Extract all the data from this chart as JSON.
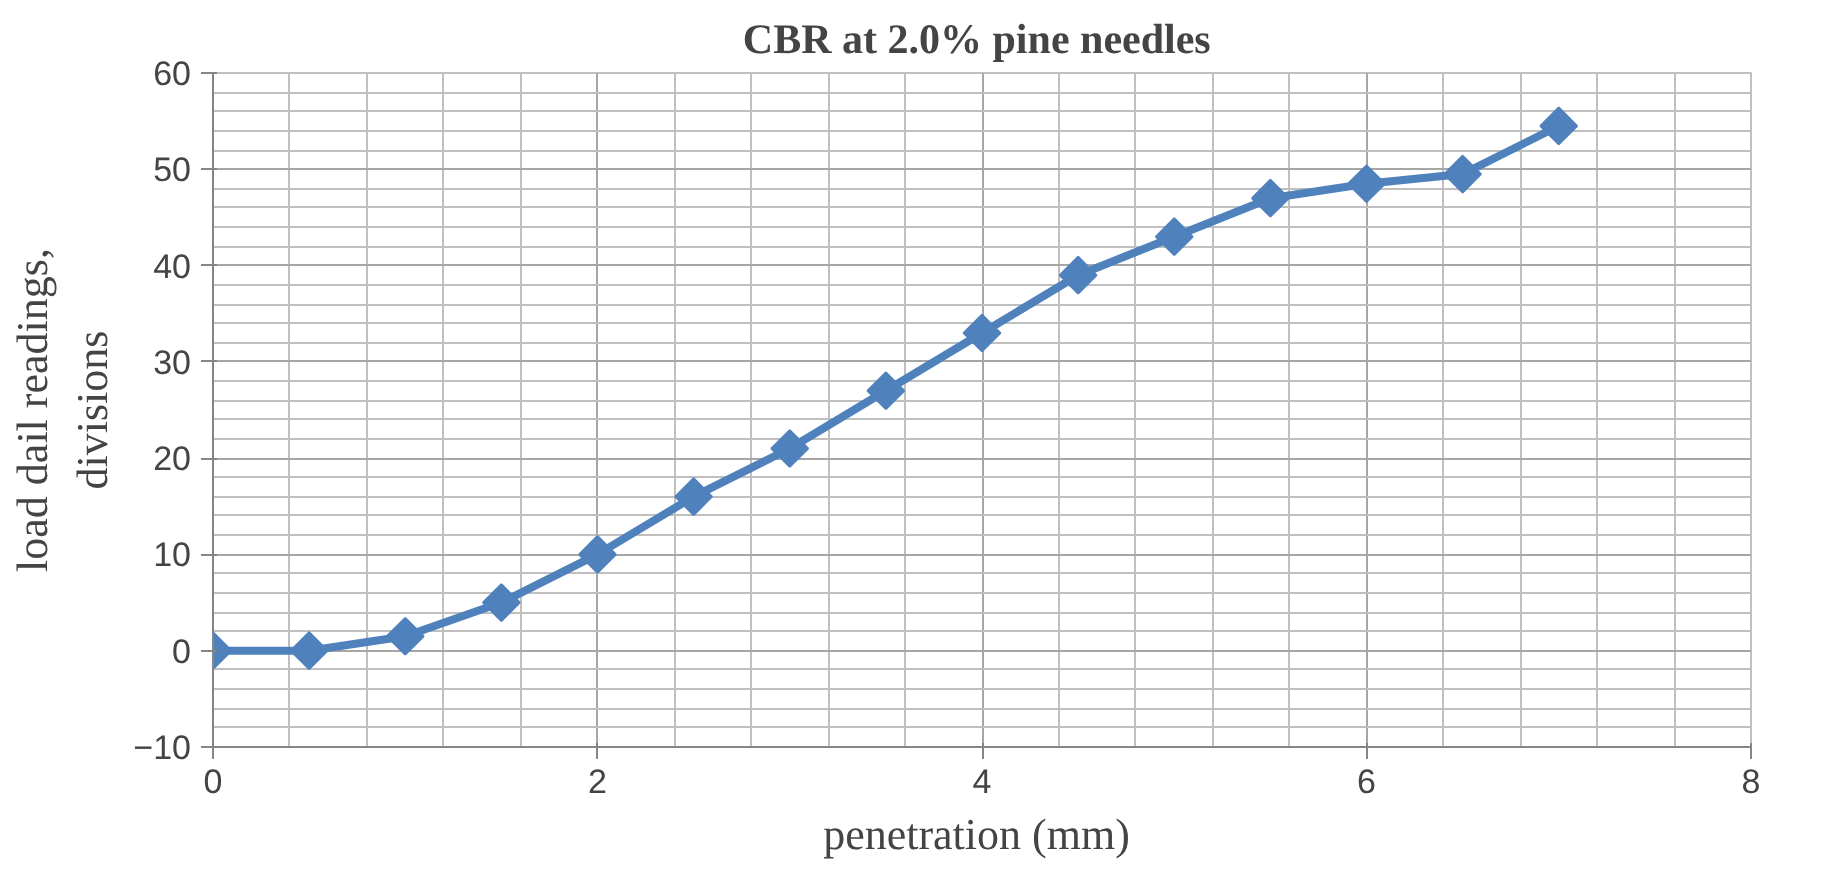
{
  "chart_data": {
    "type": "line",
    "title": "CBR at  2.0% pine needles",
    "xlabel": "penetration  (mm)",
    "ylabel": "load dail readings,\ndivisions",
    "x": [
      0,
      0.5,
      1,
      1.5,
      2,
      2.5,
      3,
      3.5,
      4,
      4.5,
      5,
      5.5,
      6,
      6.5,
      7
    ],
    "series": [
      {
        "color": "#4f81bd",
        "values": [
          0,
          0,
          1.5,
          5,
          10,
          16,
          21,
          27,
          33,
          39,
          43,
          47,
          48.5,
          49.5,
          54.5
        ]
      }
    ],
    "xlim": [
      0,
      8
    ],
    "xticks": [
      0,
      2,
      4,
      6,
      8
    ],
    "ylim": [
      -10,
      60
    ],
    "yticks": [
      -10,
      0,
      10,
      20,
      30,
      40,
      50,
      60
    ],
    "grid": true,
    "marker": "diamond",
    "line_style": "solid"
  }
}
